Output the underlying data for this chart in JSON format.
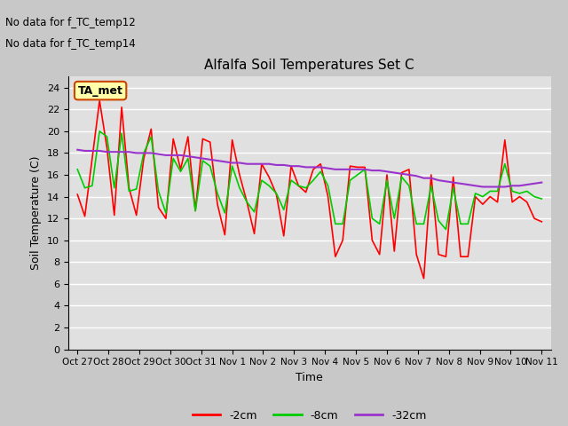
{
  "title": "Alfalfa Soil Temperatures Set C",
  "xlabel": "Time",
  "ylabel": "Soil Temperature (C)",
  "no_data_text": [
    "No data for f_TC_temp12",
    "No data for f_TC_temp14"
  ],
  "legend_label": "TA_met",
  "plot_bg_color": "#e0e0e0",
  "fig_bg_color": "#c8c8c8",
  "ylim": [
    0,
    25
  ],
  "yticks": [
    0,
    2,
    4,
    6,
    8,
    10,
    12,
    14,
    16,
    18,
    20,
    22,
    24
  ],
  "x_tick_labels": [
    "Oct 27",
    "Oct 28",
    "Oct 29",
    "Oct 30",
    "Oct 31",
    "Nov 1",
    "Nov 2",
    "Nov 3",
    "Nov 4",
    "Nov 5",
    "Nov 6",
    "Nov 7",
    "Nov 8",
    "Nov 9",
    "Nov 10",
    "Nov 11"
  ],
  "line_colors": {
    "2cm": "#ff0000",
    "8cm": "#00cc00",
    "32cm": "#9933cc"
  },
  "line_widths": {
    "2cm": 1.2,
    "8cm": 1.2,
    "32cm": 1.5
  },
  "series_2cm": [
    14.2,
    12.2,
    17.5,
    22.8,
    18.5,
    12.3,
    22.2,
    14.8,
    12.3,
    17.5,
    20.2,
    13.0,
    12.0,
    19.3,
    16.5,
    19.5,
    12.7,
    19.3,
    19.0,
    13.3,
    10.5,
    19.2,
    16.0,
    13.5,
    10.6,
    17.0,
    15.8,
    14.2,
    10.4,
    16.8,
    15.0,
    14.4,
    16.5,
    17.0,
    14.0,
    8.5,
    10.0,
    16.8,
    16.7,
    16.7,
    10.0,
    8.7,
    16.0,
    9.0,
    16.2,
    16.5,
    8.7,
    6.5,
    16.0,
    8.7,
    8.5,
    15.8,
    8.5,
    8.5,
    14.0,
    13.3,
    14.0,
    13.5,
    19.2,
    13.5,
    14.0,
    13.5,
    12.0,
    11.7
  ],
  "series_8cm": [
    16.5,
    14.8,
    15.0,
    20.0,
    19.5,
    14.8,
    19.8,
    14.5,
    14.7,
    18.0,
    19.5,
    14.5,
    12.5,
    17.5,
    16.3,
    17.5,
    12.7,
    17.3,
    16.8,
    14.3,
    12.5,
    16.8,
    14.8,
    13.5,
    12.6,
    15.5,
    15.0,
    14.3,
    12.8,
    15.5,
    15.0,
    14.8,
    15.5,
    16.3,
    15.0,
    11.5,
    11.5,
    15.5,
    16.0,
    16.5,
    12.0,
    11.5,
    15.5,
    12.0,
    15.8,
    15.0,
    11.5,
    11.5,
    15.0,
    11.8,
    11.0,
    14.8,
    11.5,
    11.5,
    14.3,
    14.0,
    14.5,
    14.5,
    17.0,
    14.5,
    14.3,
    14.5,
    14.0,
    13.8
  ],
  "series_32cm": [
    18.3,
    18.2,
    18.2,
    18.2,
    18.1,
    18.1,
    18.1,
    18.1,
    18.0,
    18.0,
    18.0,
    17.9,
    17.8,
    17.8,
    17.8,
    17.7,
    17.6,
    17.5,
    17.4,
    17.3,
    17.2,
    17.1,
    17.1,
    17.0,
    17.0,
    17.0,
    17.0,
    16.9,
    16.9,
    16.8,
    16.8,
    16.7,
    16.7,
    16.7,
    16.6,
    16.5,
    16.5,
    16.5,
    16.5,
    16.5,
    16.4,
    16.4,
    16.3,
    16.2,
    16.1,
    16.0,
    15.9,
    15.7,
    15.7,
    15.5,
    15.4,
    15.3,
    15.2,
    15.1,
    15.0,
    14.9,
    14.9,
    14.9,
    14.9,
    15.0,
    15.0,
    15.1,
    15.2,
    15.3
  ]
}
